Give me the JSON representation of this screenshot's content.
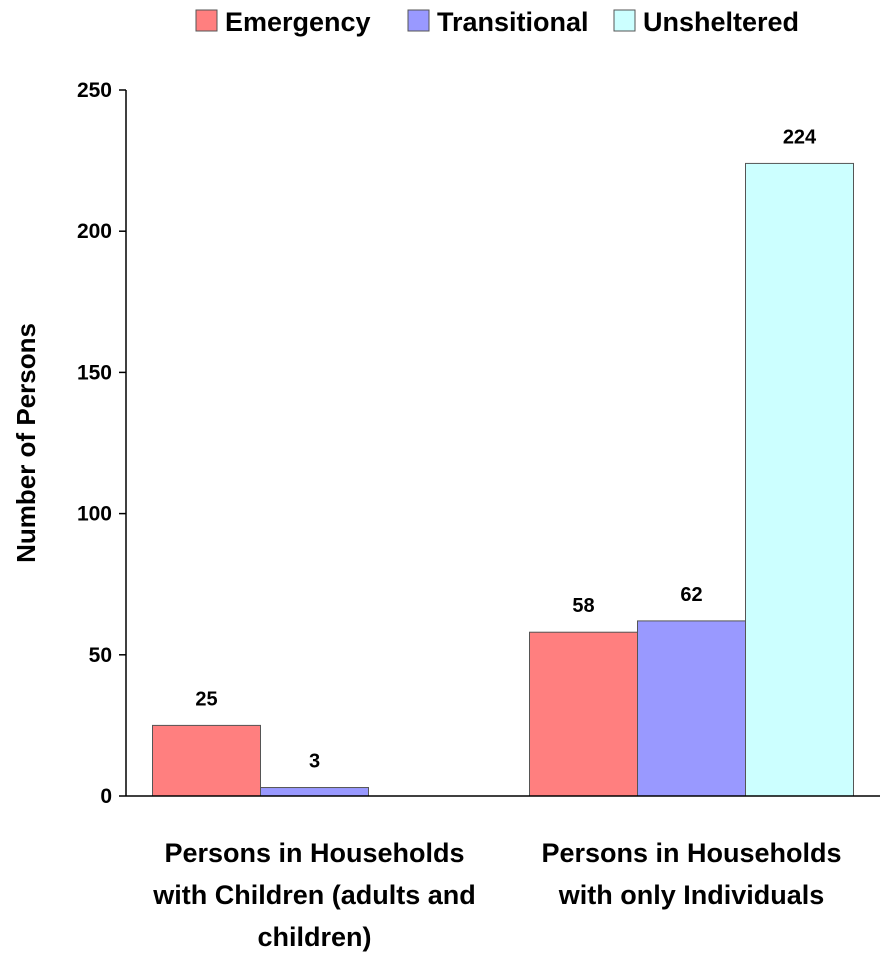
{
  "chart_data": {
    "type": "bar",
    "categories": [
      [
        "Persons in Households",
        "with Children (adults and",
        "children)"
      ],
      [
        "Persons in Households",
        "with only Individuals"
      ]
    ],
    "series": [
      {
        "name": "Emergency",
        "values": [
          25,
          58
        ],
        "color": "#ff7f7f"
      },
      {
        "name": "Transitional",
        "values": [
          3,
          62
        ],
        "color": "#9999ff"
      },
      {
        "name": "Unsheltered",
        "values": [
          null,
          224
        ],
        "color": "#ccffff"
      }
    ],
    "title": "",
    "xlabel": "",
    "ylabel": "Number of Persons",
    "ylim": [
      0,
      250
    ],
    "yticks": [
      0,
      50,
      100,
      150,
      200,
      250
    ],
    "legend_position": "top",
    "grid": false
  }
}
